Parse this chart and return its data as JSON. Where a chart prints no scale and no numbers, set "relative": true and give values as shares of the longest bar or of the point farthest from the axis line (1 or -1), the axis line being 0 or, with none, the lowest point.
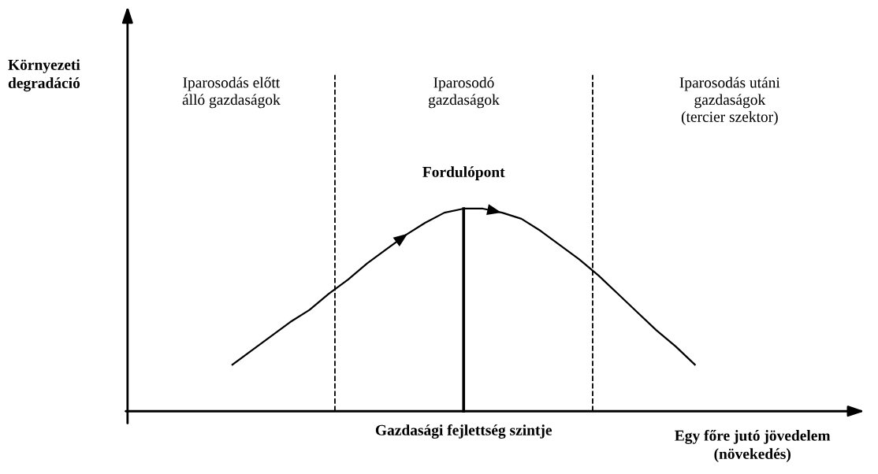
{
  "chart_data": {
    "type": "line",
    "relative": true,
    "xlabel": "Egy főre jutó jövedelem\n(növekedés)",
    "categories": [
      null,
      null,
      null,
      null,
      null,
      null,
      null,
      null,
      null,
      null,
      null,
      null,
      null,
      null,
      null,
      null,
      null,
      null,
      null,
      null,
      null,
      null,
      null,
      null,
      null
    ],
    "series": [
      {
        "color": "#000000",
        "values": [
          0.23,
          0.3,
          0.37,
          0.44,
          0.5,
          0.58,
          0.65,
          0.73,
          0.8,
          0.87,
          0.93,
          0.98,
          1,
          1,
          0.98,
          0.95,
          0.89,
          0.82,
          0.75,
          0.67,
          0.58,
          0.49,
          0.4,
          0.32,
          0.23
        ]
      }
    ],
    "annotations": [
      "Iparosodás előtt\nálló gazdaságok",
      "Iparosodó\ngazdaságok",
      "Iparosodás utáni\ngazdaságok\n(tercier szektor)",
      "Fordulópont",
      "Gazdasági fejlettség szintje",
      "Környezeti\ndegradáció"
    ],
    "grid": false,
    "marker": "none",
    "line_style": "solid"
  }
}
